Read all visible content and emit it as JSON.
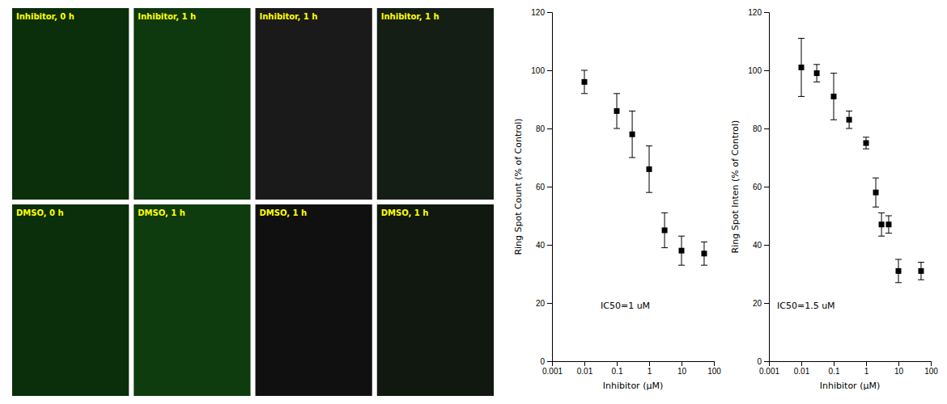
{
  "chart_data": [
    {
      "type": "image",
      "annotations": [
        "Inhibitor, 0 h",
        "Inhibitor, 1 h",
        "Inhibitor, 1 h",
        "Inhibitor, 1 h",
        "DMSO, 0 h",
        "DMSO, 1 h",
        "DMSO, 1 h",
        "DMSO, 1 h"
      ],
      "colors": [
        "#0b2e0b",
        "#0e380e",
        "#1a1a1a",
        "#141e14",
        "#0b2e0b",
        "#0e3c0e",
        "#101010",
        "#101810"
      ],
      "color": "#ffff00",
      "tick_labels": false
    },
    {
      "type": "scatter",
      "xlabel": "Inhibitor (μM)",
      "ylabel": "Ring Spot Count (% of Control)",
      "annotations": [
        "IC50=1 uM"
      ],
      "log": "x",
      "x": [
        0.01,
        0.1,
        0.3,
        1.0,
        3.0,
        10.0,
        50.0
      ],
      "values": [
        96,
        86,
        78,
        66,
        45,
        38,
        37
      ],
      "errors": [
        4,
        6,
        8,
        8,
        6,
        5,
        4
      ],
      "color": "#000000",
      "marker": "square",
      "xlim": [
        0.001,
        100
      ],
      "xticks": [
        0.001,
        0.01,
        0.1,
        1,
        10,
        100
      ],
      "ylim": [
        0,
        120
      ],
      "yticks": [
        0,
        20,
        40,
        60,
        80,
        100,
        120
      ],
      "grid": false
    },
    {
      "type": "scatter",
      "xlabel": "Inhibitor (μM)",
      "ylabel": "Ring Spot Inten (% of Control)",
      "annotations": [
        "IC50=1.5 uM"
      ],
      "log": "x",
      "x": [
        0.01,
        0.03,
        0.1,
        0.3,
        1.0,
        2.0,
        3.0,
        5.0,
        10.0,
        50.0
      ],
      "values": [
        101,
        99,
        91,
        83,
        75,
        58,
        47,
        47,
        31,
        31
      ],
      "errors": [
        10,
        3,
        8,
        3,
        2,
        5,
        4,
        3,
        4,
        3
      ],
      "color": "#000000",
      "marker": "square",
      "xlim": [
        0.001,
        100
      ],
      "xticks": [
        0.001,
        0.01,
        0.1,
        1,
        10,
        100
      ],
      "ylim": [
        0,
        120
      ],
      "yticks": [
        0,
        20,
        40,
        60,
        80,
        100,
        120
      ],
      "grid": false
    }
  ]
}
